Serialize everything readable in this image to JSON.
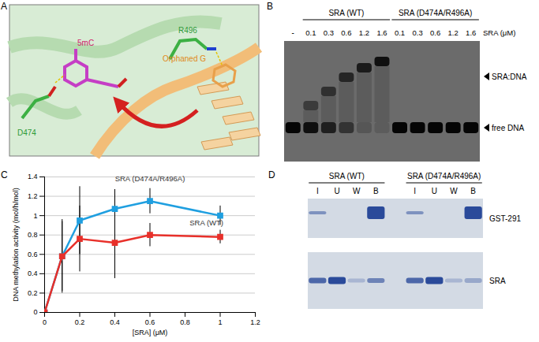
{
  "panel_labels": [
    "A",
    "B",
    "C",
    "D"
  ],
  "panel_a": {
    "labels": {
      "modified_base": "5mC",
      "residue_left": "D474",
      "residue_right": "R496",
      "partner_base": "Orphaned G"
    }
  },
  "panel_b": {
    "groups": [
      "SRA (WT)",
      "SRA (D474A/R496A)"
    ],
    "control_lane": "-",
    "concentration_label": "SRA (μM)",
    "concentrations": [
      0.1,
      0.3,
      0.6,
      1.2,
      1.6
    ],
    "bands": [
      "SRA:DNA",
      "free DNA"
    ]
  },
  "panel_d": {
    "groups": [
      "SRA (WT)",
      "SRA (D474A/R496A)"
    ],
    "lanes": [
      "I",
      "U",
      "W",
      "B"
    ],
    "gels": [
      "GST-291",
      "SRA"
    ]
  },
  "chart_data": {
    "type": "line",
    "x_label": "[SRA] (μM)",
    "y_label": "DNA methylation activity (mol/h/mol)",
    "x": [
      0,
      0.1,
      0.2,
      0.4,
      0.6,
      1
    ],
    "xlim": [
      0,
      1.2
    ],
    "xticks": [
      0,
      0.2,
      0.4,
      0.6,
      0.8,
      1,
      1.2
    ],
    "ylim": [
      0,
      1.4
    ],
    "yticks": [
      0,
      0.2,
      0.4,
      0.6,
      0.8,
      1,
      1.2,
      1.4
    ],
    "grid": true,
    "marker": "square",
    "series": [
      {
        "name": "SRA (D474A/R496A)",
        "color": "#1f9fe0",
        "values": [
          0,
          0.58,
          0.95,
          1.07,
          1.15,
          1.0
        ],
        "errors": [
          0,
          0.36,
          0.35,
          0.2,
          0.13,
          0.1
        ]
      },
      {
        "name": "SRA (WT)",
        "color": "#e8302a",
        "values": [
          0,
          0.58,
          0.76,
          0.72,
          0.8,
          0.78
        ],
        "errors": [
          0,
          0.38,
          0.34,
          0.37,
          0.12,
          0.07
        ]
      }
    ]
  }
}
